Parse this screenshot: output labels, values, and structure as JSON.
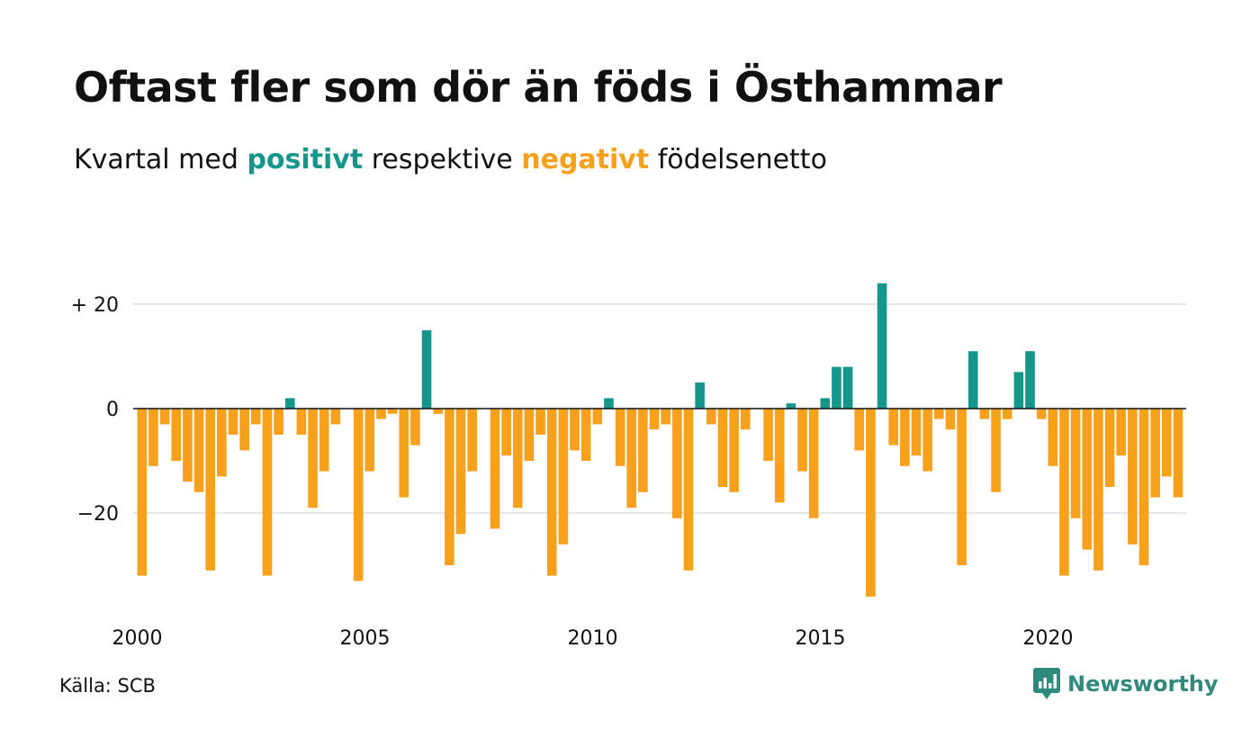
{
  "header": {
    "title": "Oftast fler som dör än föds i Östhammar",
    "subtitle_prefix": "Kvartal med",
    "subtitle_positive": "positivt",
    "subtitle_middle": "respektive",
    "subtitle_negative": "negativt",
    "subtitle_suffix": "födelsenetto"
  },
  "footer": {
    "source": "Källa: SCB",
    "brand": "Newsworthy"
  },
  "colors": {
    "positive": "#14978a",
    "negative": "#f6a01b",
    "brand": "#2f8a7e",
    "grid": "#dddddd",
    "zero_line": "#111111"
  },
  "chart_data": {
    "type": "bar",
    "start_year": 2000,
    "periods_per_year": 4,
    "x_ticks": [
      "2000",
      "2005",
      "2010",
      "2015",
      "2020"
    ],
    "y_ticks": [
      {
        "value": 20,
        "label": "+ 20"
      },
      {
        "value": 0,
        "label": "0"
      },
      {
        "value": -20,
        "label": "−20"
      }
    ],
    "ylim": [
      -40,
      24
    ],
    "grid": true,
    "values": [
      -32,
      -11,
      -3,
      -10,
      -14,
      -16,
      -31,
      -13,
      -5,
      -8,
      -3,
      -32,
      -5,
      2,
      -5,
      -19,
      -12,
      -3,
      0,
      -33,
      -12,
      -2,
      -1,
      -17,
      -7,
      15,
      -1,
      -30,
      -24,
      -12,
      0,
      -23,
      -9,
      -19,
      -10,
      -5,
      -32,
      -26,
      -8,
      -10,
      -3,
      2,
      -11,
      -19,
      -16,
      -4,
      -3,
      -21,
      -31,
      5,
      -3,
      -15,
      -16,
      -4,
      0,
      -10,
      -18,
      1,
      -12,
      -21,
      2,
      8,
      8,
      -8,
      -36,
      24,
      -7,
      -11,
      -9,
      -12,
      -2,
      -4,
      -30,
      11,
      -2,
      -16,
      -2,
      7,
      11,
      -2,
      -11,
      -32,
      -21,
      -27,
      -31,
      -15,
      -9,
      -26,
      -30,
      -17,
      -13,
      -17
    ]
  }
}
